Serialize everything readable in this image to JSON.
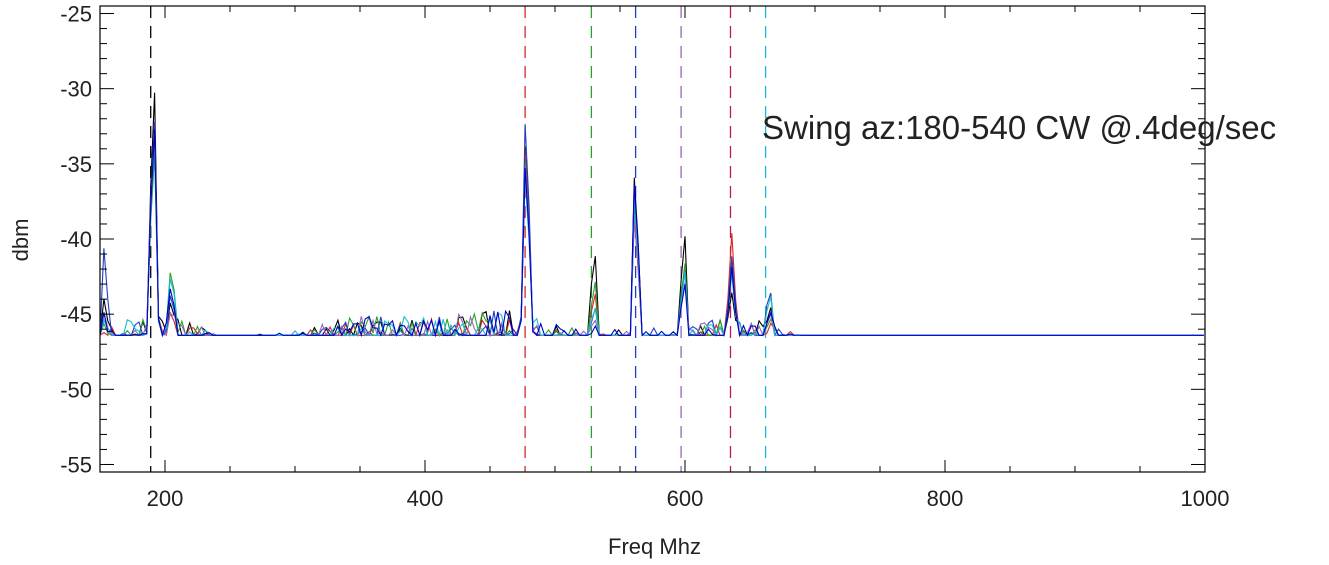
{
  "chart_data": {
    "type": "line",
    "title": "",
    "xlabel": "Freq Mhz",
    "ylabel": "dbm",
    "xlim": [
      150,
      1000
    ],
    "ylim": [
      -55.5,
      -24.5
    ],
    "x_ticks": [
      200,
      400,
      600,
      800,
      1000
    ],
    "x_minor_step": 50,
    "y_ticks": [
      -25,
      -30,
      -35,
      -40,
      -45,
      -50,
      -55
    ],
    "y_minor_step": 1,
    "grid": false,
    "annotation": "Swing az:180-540 CW @.4deg/sec",
    "vlines": [
      {
        "x": 189,
        "color": "#000000"
      },
      {
        "x": 477,
        "color": "#d62728"
      },
      {
        "x": 528,
        "color": "#2ca02c"
      },
      {
        "x": 562,
        "color": "#1f3fbf"
      },
      {
        "x": 597,
        "color": "#9467bd"
      },
      {
        "x": 635,
        "color": "#c2185b"
      },
      {
        "x": 662,
        "color": "#17becf"
      }
    ],
    "baseline": {
      "x": [
        150,
        175,
        200,
        250,
        300,
        350,
        400,
        450,
        470,
        520,
        560,
        600,
        640,
        700,
        750,
        800,
        850,
        900,
        950,
        1000
      ],
      "y": [
        -47,
        -46.8,
        -46.5,
        -48,
        -47.5,
        -46.6,
        -46.7,
        -46.3,
        -46.2,
        -47.5,
        -47.5,
        -47.3,
        -46.5,
        -48,
        -48.2,
        -48.4,
        -48.6,
        -49,
        -49.3,
        -49.5
      ]
    },
    "peaks": [
      {
        "x": 154,
        "width": 2
      },
      {
        "x": 191,
        "width": 2.5
      },
      {
        "x": 205,
        "width": 3
      },
      {
        "x": 478,
        "width": 2.5
      },
      {
        "x": 530,
        "width": 3
      },
      {
        "x": 562,
        "width": 2.5
      },
      {
        "x": 599,
        "width": 2.5
      },
      {
        "x": 636,
        "width": 3
      },
      {
        "x": 665,
        "width": 3
      }
    ],
    "series": [
      {
        "color": "#000000",
        "peak_levels": [
          -43,
          -27.5,
          -44,
          -31.5,
          -40.5,
          -34,
          -38.5,
          -43.5,
          -44.5
        ],
        "seed": 11
      },
      {
        "color": "#d62728",
        "peak_levels": [
          -46,
          -29.5,
          -45,
          -32,
          -43.5,
          -37,
          -41,
          -39.5,
          -45.5
        ],
        "seed": 23
      },
      {
        "color": "#2ca02c",
        "peak_levels": [
          -45,
          -32,
          -41.5,
          -33,
          -42.5,
          -36,
          -40.5,
          -41.5,
          -45
        ],
        "seed": 37
      },
      {
        "color": "#1f3fbf",
        "peak_levels": [
          -39,
          -29.5,
          -43.5,
          -30,
          -44.5,
          -35,
          -41,
          -41,
          -43
        ],
        "seed": 41
      },
      {
        "color": "#9467bd",
        "peak_levels": [
          -44,
          -30.5,
          -44.5,
          -33,
          -45,
          -37,
          -42,
          -42,
          -45
        ],
        "seed": 53
      },
      {
        "color": "#17becf",
        "peak_levels": [
          -45,
          -31,
          -42,
          -34,
          -44,
          -35.5,
          -41.5,
          -42.5,
          -43.5
        ],
        "seed": 67
      },
      {
        "color": "#0000cc",
        "peak_levels": [
          -44.5,
          -30,
          -43,
          -33.5,
          -45.5,
          -34.5,
          -42,
          -42,
          -44.5
        ],
        "seed": 79
      }
    ],
    "x_step": 3
  }
}
